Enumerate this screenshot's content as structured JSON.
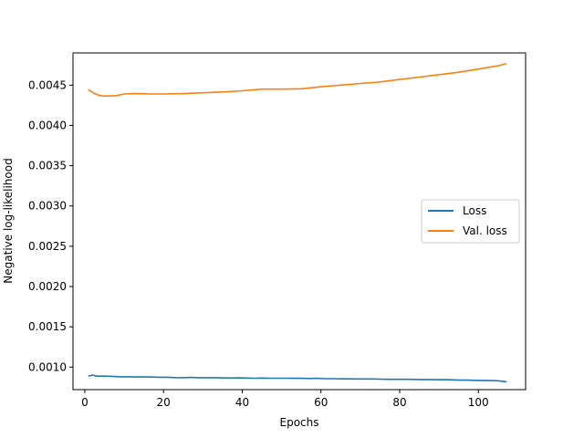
{
  "chart_data": {
    "type": "line",
    "title": "",
    "xlabel": "Epochs",
    "ylabel": "Negative log-likelihood",
    "xlim": [
      -3,
      112
    ],
    "ylim": [
      0.00072,
      0.0049
    ],
    "xticks": [
      0,
      20,
      40,
      60,
      80,
      100
    ],
    "xtick_labels": [
      "0",
      "20",
      "40",
      "60",
      "80",
      "100"
    ],
    "yticks": [
      0.001,
      0.0015,
      0.002,
      0.0025,
      0.003,
      0.0035,
      0.004,
      0.0045
    ],
    "ytick_labels": [
      "0.0010",
      "0.0015",
      "0.0020",
      "0.0025",
      "0.0030",
      "0.0035",
      "0.0040",
      "0.0045"
    ],
    "grid": false,
    "legend_position": "center-right",
    "series": [
      {
        "name": "Loss",
        "color": "#1f77b4",
        "x": [
          1,
          2,
          3,
          5,
          7,
          9,
          11,
          13,
          15,
          17,
          19,
          21,
          23,
          25,
          27,
          29,
          31,
          33,
          35,
          37,
          39,
          41,
          43,
          45,
          47,
          49,
          51,
          53,
          55,
          57,
          59,
          61,
          63,
          65,
          67,
          69,
          71,
          73,
          75,
          77,
          79,
          81,
          83,
          85,
          87,
          89,
          91,
          93,
          95,
          97,
          99,
          101,
          103,
          105,
          107
        ],
        "values": [
          0.00089,
          0.0009,
          0.000888,
          0.000888,
          0.000885,
          0.00088,
          0.00088,
          0.000878,
          0.000878,
          0.000876,
          0.000874,
          0.000874,
          0.00087,
          0.000868,
          0.000872,
          0.000868,
          0.000868,
          0.000868,
          0.000866,
          0.000864,
          0.000866,
          0.000864,
          0.000862,
          0.000864,
          0.000862,
          0.000862,
          0.000862,
          0.00086,
          0.00086,
          0.000858,
          0.00086,
          0.000856,
          0.000856,
          0.000854,
          0.000854,
          0.000852,
          0.000852,
          0.000852,
          0.00085,
          0.000848,
          0.000848,
          0.000848,
          0.000848,
          0.000846,
          0.000846,
          0.000844,
          0.000844,
          0.000842,
          0.000838,
          0.000838,
          0.000836,
          0.000834,
          0.000832,
          0.00083,
          0.000818
        ]
      },
      {
        "name": "Val. loss",
        "color": "#ff7f0e",
        "x": [
          1,
          2,
          3,
          4,
          5,
          6,
          8,
          10,
          12,
          14,
          16,
          18,
          20,
          25,
          30,
          35,
          40,
          45,
          50,
          55,
          60,
          65,
          70,
          75,
          80,
          85,
          90,
          95,
          100,
          105,
          107
        ],
        "values": [
          0.00444,
          0.00441,
          0.004385,
          0.00437,
          0.004365,
          0.004365,
          0.00437,
          0.00439,
          0.004395,
          0.004395,
          0.00439,
          0.00439,
          0.00439,
          0.004395,
          0.004405,
          0.004415,
          0.00443,
          0.00445,
          0.00445,
          0.004455,
          0.00448,
          0.0045,
          0.00452,
          0.00454,
          0.00457,
          0.0046,
          0.00463,
          0.00466,
          0.0047,
          0.00474,
          0.004765
        ]
      }
    ]
  }
}
